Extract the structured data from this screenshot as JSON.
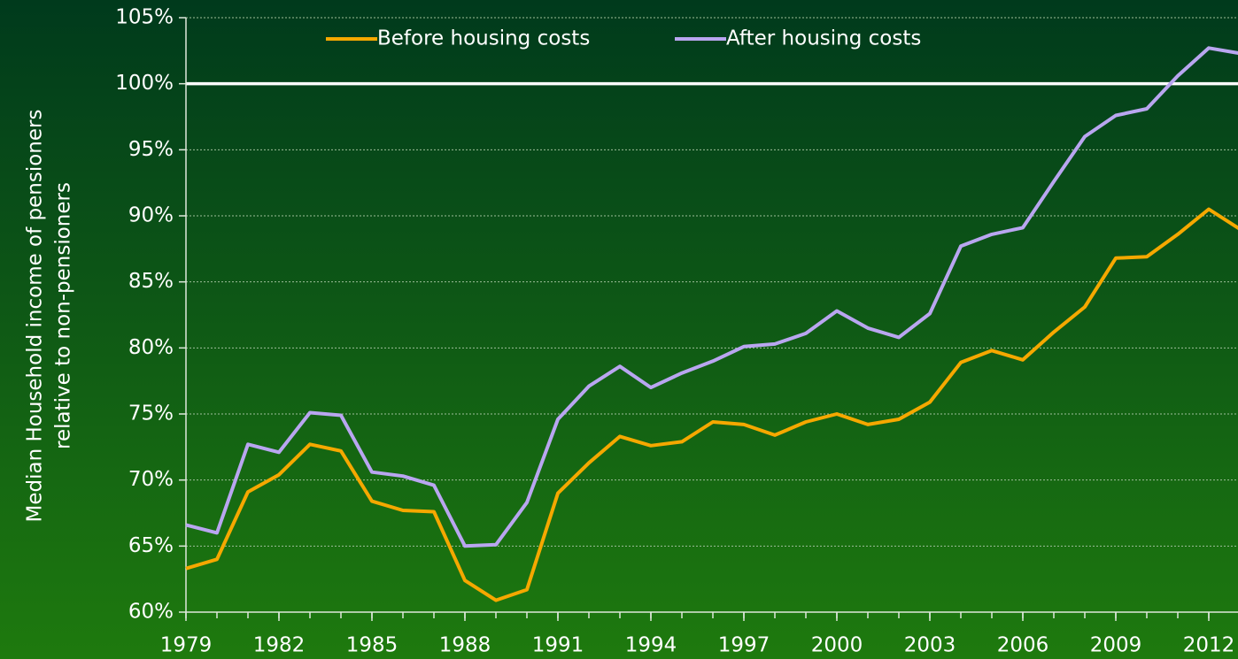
{
  "chart_data": {
    "type": "line",
    "y_label": [
      "Median Household income of pensioners",
      "relative to non-pensioners"
    ],
    "x": [
      1979,
      1980,
      1981,
      1982,
      1983,
      1984,
      1985,
      1986,
      1987,
      1988,
      1989,
      1990,
      1991,
      1992,
      1993,
      1994,
      1995,
      1996,
      1997,
      1998,
      1999,
      2000,
      2001,
      2002,
      2003,
      2004,
      2005,
      2006,
      2007,
      2008,
      2009,
      2010,
      2011,
      2012,
      2013
    ],
    "series": [
      {
        "name": "Before housing costs",
        "color": "#f5a800",
        "values": [
          63.3,
          64.0,
          69.1,
          70.4,
          72.7,
          72.2,
          68.4,
          67.7,
          67.6,
          62.4,
          60.9,
          61.7,
          69.0,
          71.3,
          73.3,
          72.6,
          72.9,
          74.4,
          74.2,
          73.4,
          74.4,
          75.0,
          74.2,
          74.6,
          75.9,
          78.9,
          79.8,
          79.1,
          81.2,
          83.1,
          86.8,
          86.9,
          88.6,
          90.5,
          89.0
        ]
      },
      {
        "name": "After housing costs",
        "color": "#b9a6f0",
        "values": [
          66.6,
          66.0,
          72.7,
          72.1,
          75.1,
          74.9,
          70.6,
          70.3,
          69.6,
          65.0,
          65.1,
          68.3,
          74.6,
          77.1,
          78.6,
          77.0,
          78.1,
          79.0,
          80.1,
          80.3,
          81.1,
          82.8,
          81.5,
          80.8,
          82.6,
          87.7,
          88.6,
          89.1,
          92.6,
          96.0,
          97.6,
          98.1,
          100.6,
          102.7,
          102.3
        ]
      }
    ],
    "reference_line": 100,
    "xlim": [
      1979,
      2013
    ],
    "xticks": [
      1979,
      1982,
      1985,
      1988,
      1991,
      1994,
      1997,
      2000,
      2003,
      2006,
      2009,
      2012
    ],
    "ylim": [
      60,
      105
    ],
    "yticks": [
      {
        "value": 60,
        "label": "60%"
      },
      {
        "value": 65,
        "label": "65%"
      },
      {
        "value": 70,
        "label": "70%"
      },
      {
        "value": 75,
        "label": "75%"
      },
      {
        "value": 80,
        "label": "80%"
      },
      {
        "value": 85,
        "label": "85%"
      },
      {
        "value": 90,
        "label": "90%"
      },
      {
        "value": 95,
        "label": "95%"
      },
      {
        "value": 100,
        "label": "100%"
      },
      {
        "value": 105,
        "label": "105%"
      }
    ],
    "grid": true
  }
}
